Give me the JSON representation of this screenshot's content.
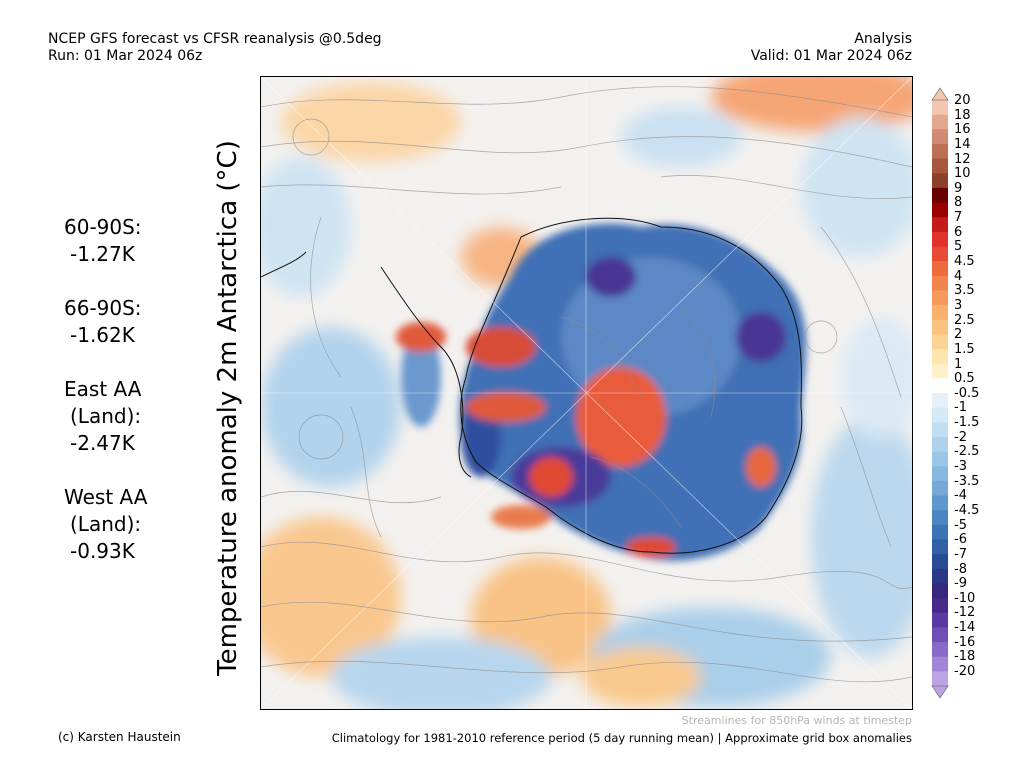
{
  "header": {
    "title_line1": "NCEP GFS forecast vs CFSR reanalysis @0.5deg",
    "title_line2": "Run: 01 Mar 2024 06z",
    "right_line1": "Analysis",
    "right_line2": "Valid: 01 Mar 2024 06z"
  },
  "axis_label": "Temperature anomaly 2m Antarctica (°C)",
  "stats": [
    {
      "label_lines": [
        "60-90S:"
      ],
      "value": "-1.27K"
    },
    {
      "label_lines": [
        "66-90S:"
      ],
      "value": "-1.62K"
    },
    {
      "label_lines": [
        "East AA",
        "(Land):"
      ],
      "value": "-2.47K"
    },
    {
      "label_lines": [
        "West AA",
        "(Land):"
      ],
      "value": "-0.93K"
    }
  ],
  "colorbar": {
    "labels": [
      "20",
      "18",
      "16",
      "14",
      "12",
      "10",
      "9",
      "8",
      "7",
      "6",
      "5",
      "4.5",
      "4",
      "3.5",
      "3",
      "2.5",
      "2",
      "1.5",
      "1",
      "0.5",
      "-0.5",
      "-1",
      "-1.5",
      "-2",
      "-2.5",
      "-3",
      "-3.5",
      "-4",
      "-4.5",
      "-5",
      "-6",
      "-7",
      "-8",
      "-9",
      "-10",
      "-12",
      "-14",
      "-16",
      "-18",
      "-20"
    ],
    "colors": [
      "#f2c6b0",
      "#e3a78e",
      "#d08a70",
      "#bd6f56",
      "#a8573f",
      "#8e3f2a",
      "#6b0000",
      "#9b0000",
      "#c41a1a",
      "#e0312b",
      "#e84a35",
      "#ef6a3f",
      "#f3834d",
      "#f59a5c",
      "#f8b06c",
      "#f9c27f",
      "#fbd495",
      "#fde3ad",
      "#fef0c8",
      "#ffffff",
      "#e7f1fa",
      "#d4e8f6",
      "#c1ddf1",
      "#afd2ec",
      "#9cc6e6",
      "#88b8df",
      "#74a9d7",
      "#5f98cd",
      "#4c86c2",
      "#3b73b6",
      "#3060a8",
      "#284c98",
      "#2a3888",
      "#34297a",
      "#452a8a",
      "#5a3aa0",
      "#7050b5",
      "#8769c8",
      "#a085d8",
      "#bba3e6"
    ]
  },
  "footer": {
    "streamlines_note": "Streamlines for 850hPa winds at timestep",
    "credit": "(c) Karsten Haustein",
    "climatology": "Climatology for 1981-2010 reference period (5 day running mean) | Approximate grid box anomalies"
  }
}
